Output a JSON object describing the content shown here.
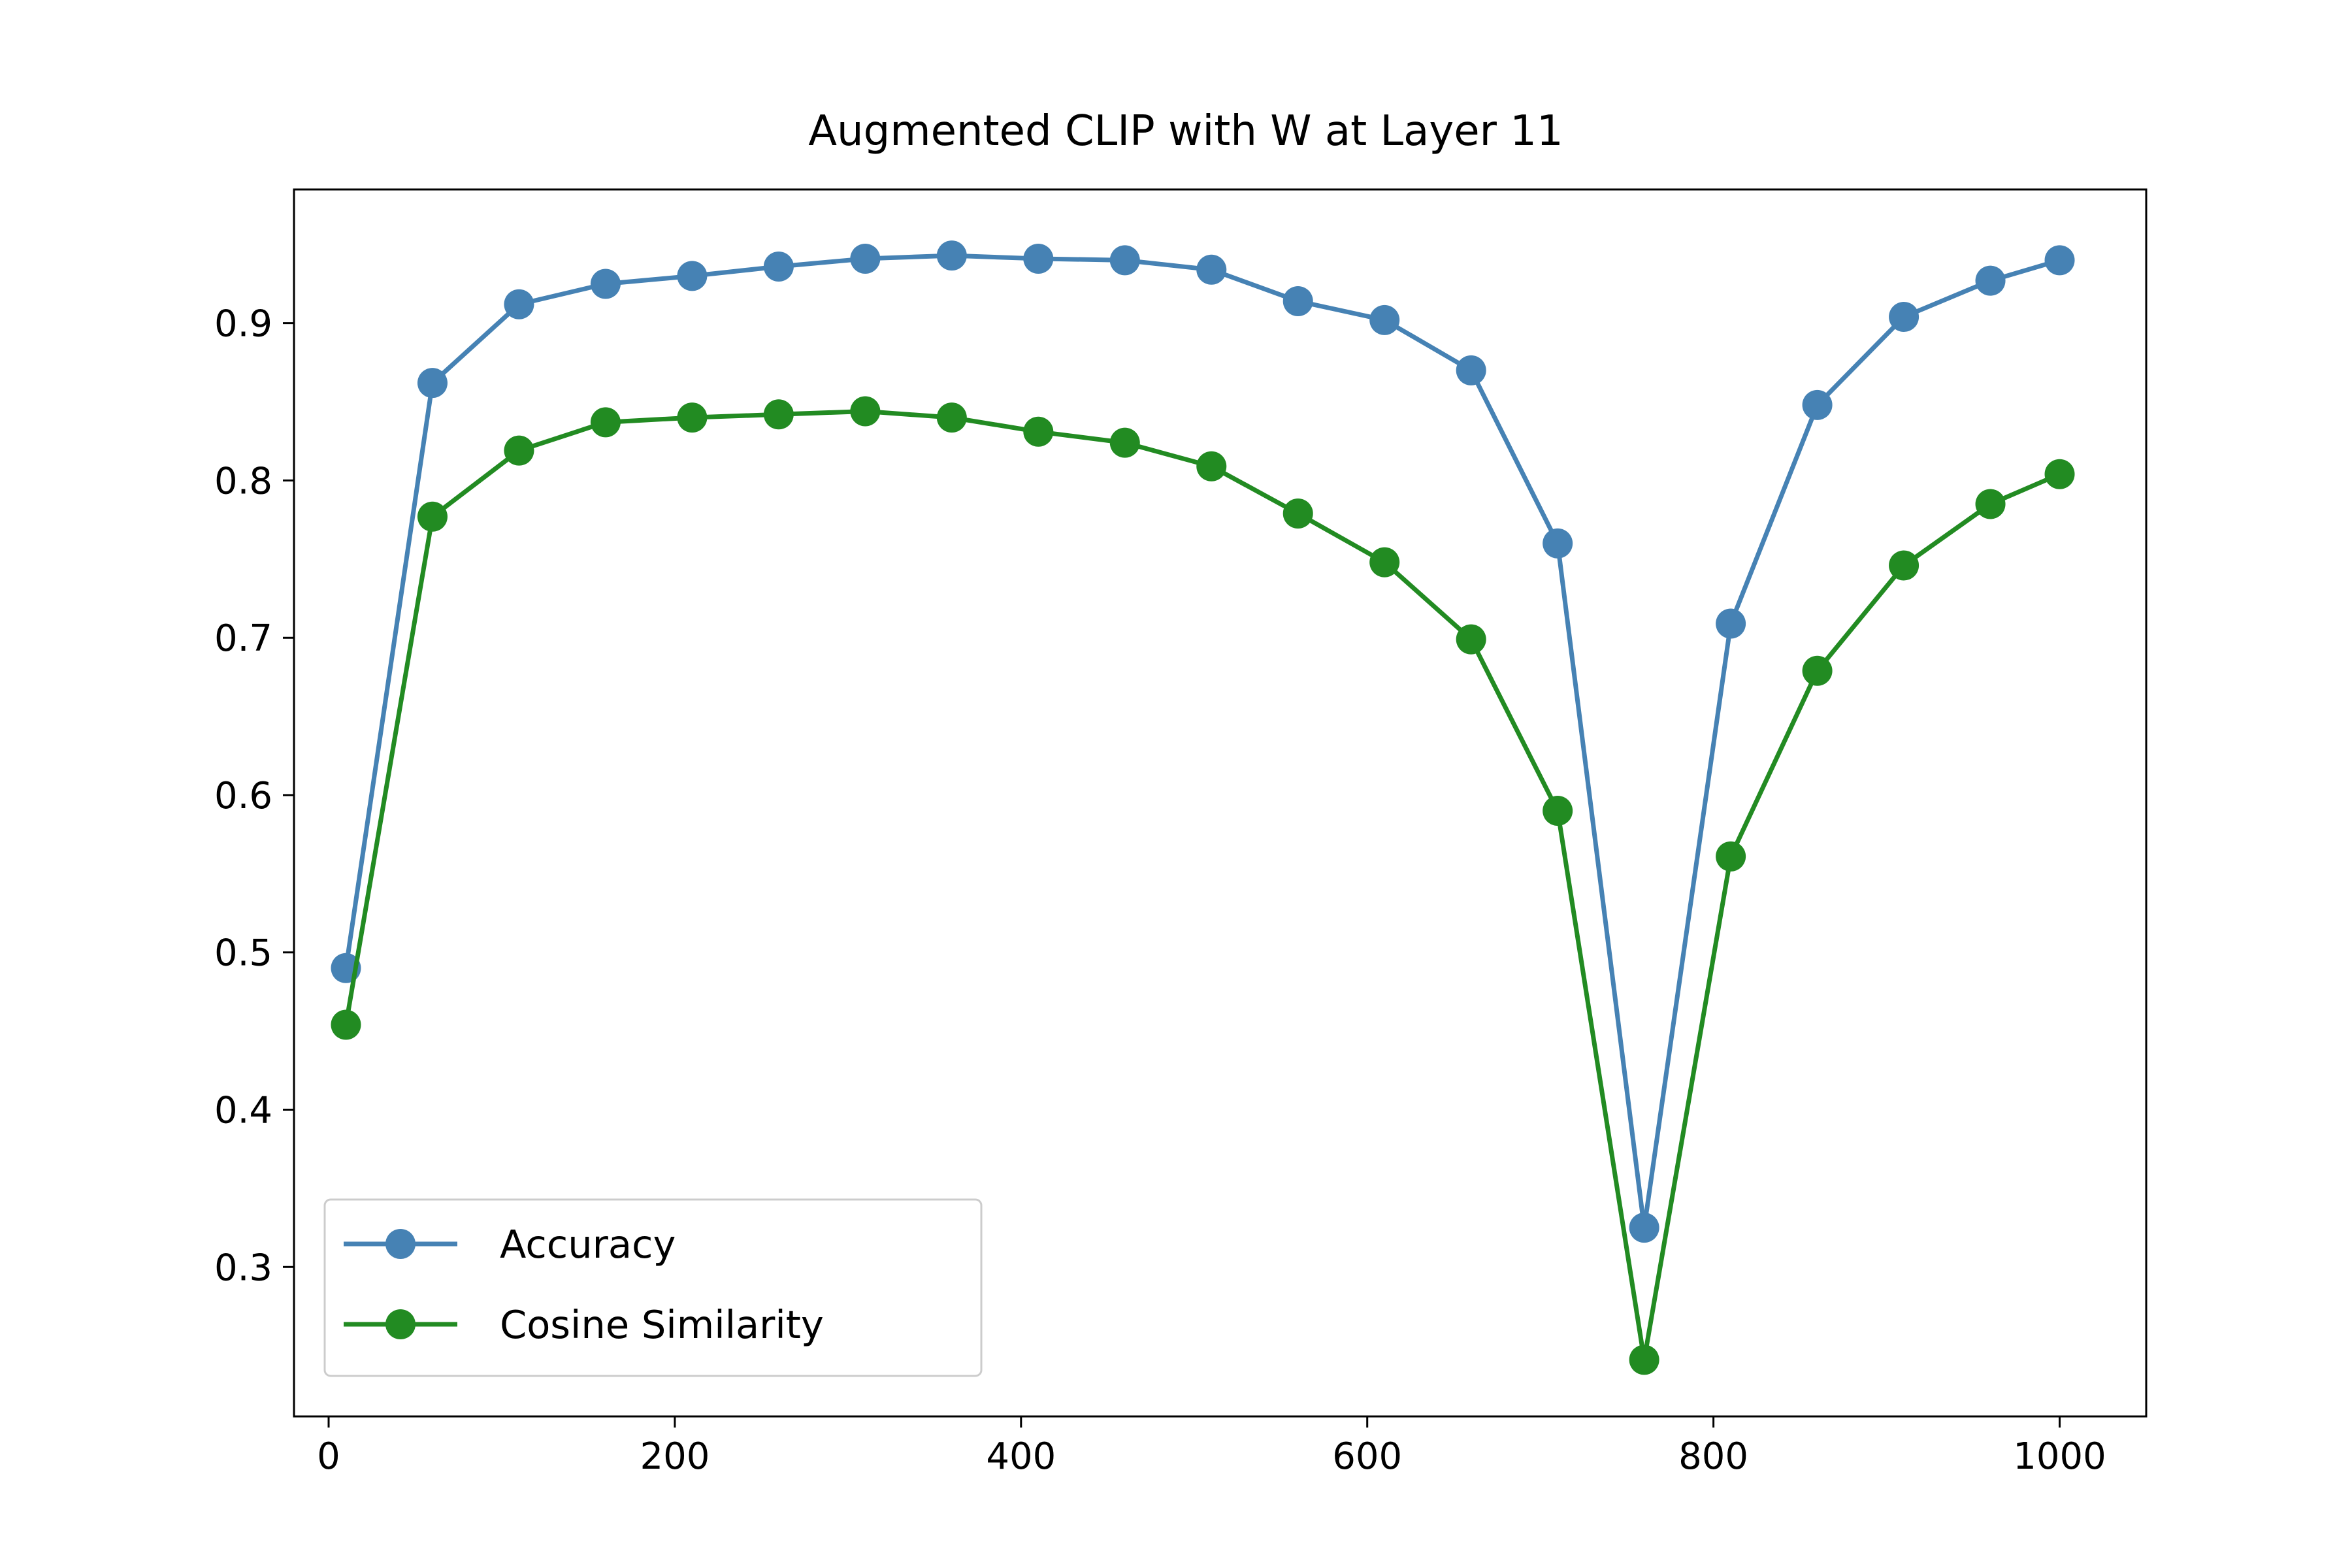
{
  "chart_data": {
    "type": "line",
    "title": "Augmented CLIP with W at Layer 11",
    "xlabel": "",
    "ylabel": "",
    "xlim": [
      -20,
      1050
    ],
    "ylim": [
      0.205,
      0.985
    ],
    "x_ticks": [
      0,
      200,
      400,
      600,
      800,
      1000
    ],
    "x_tick_labels": [
      "0",
      "200",
      "400",
      "600",
      "800",
      "1000"
    ],
    "y_ticks": [
      0.3,
      0.4,
      0.5,
      0.6,
      0.7,
      0.8,
      0.9
    ],
    "y_tick_labels": [
      "0.3",
      "0.4",
      "0.5",
      "0.6",
      "0.7",
      "0.8",
      "0.9"
    ],
    "grid": false,
    "legend_position": "lower-left",
    "x": [
      10,
      60,
      110,
      160,
      210,
      260,
      310,
      360,
      410,
      460,
      510,
      560,
      610,
      660,
      710,
      760,
      810,
      860,
      910,
      960,
      1000
    ],
    "series": [
      {
        "name": "Accuracy",
        "color": "#4682b4",
        "marker": "circle",
        "values": [
          0.49,
          0.862,
          0.912,
          0.925,
          0.93,
          0.936,
          0.941,
          0.943,
          0.941,
          0.94,
          0.934,
          0.914,
          0.902,
          0.87,
          0.76,
          0.325,
          0.709,
          0.848,
          0.904,
          0.927,
          0.94
        ]
      },
      {
        "name": "Cosine Similarity",
        "color": "#228b22",
        "marker": "circle",
        "values": [
          0.454,
          0.777,
          0.819,
          0.837,
          0.84,
          0.842,
          0.844,
          0.84,
          0.831,
          0.824,
          0.809,
          0.779,
          0.748,
          0.699,
          0.59,
          0.241,
          0.561,
          0.679,
          0.746,
          0.785,
          0.804
        ]
      }
    ]
  }
}
